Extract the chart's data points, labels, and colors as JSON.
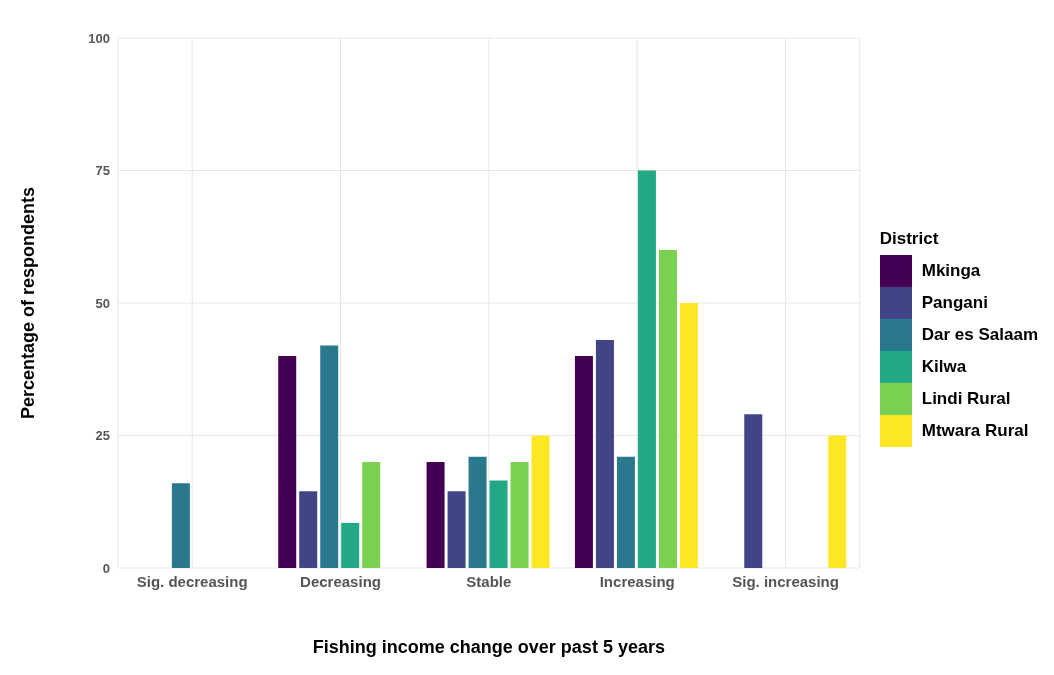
{
  "chart_data": {
    "type": "bar",
    "xlabel": "Fishing income change over past 5 years",
    "ylabel": "Percentage of respondents",
    "legend_title": "District",
    "categories": [
      "Sig. decreasing",
      "Decreasing",
      "Stable",
      "Increasing",
      "Sig. increasing"
    ],
    "series": [
      {
        "name": "Mkinga",
        "color": "#440154",
        "values": [
          0,
          40,
          20,
          40,
          0
        ]
      },
      {
        "name": "Pangani",
        "color": "#414487",
        "values": [
          0,
          14.5,
          14.5,
          43,
          29
        ]
      },
      {
        "name": "Dar es Salaam",
        "color": "#2a788e",
        "values": [
          16,
          42,
          21,
          21,
          0
        ]
      },
      {
        "name": "Kilwa",
        "color": "#22a884",
        "values": [
          0,
          8.5,
          16.5,
          75,
          0
        ]
      },
      {
        "name": "Lindi Rural",
        "color": "#7ad151",
        "values": [
          0,
          20,
          20,
          60,
          0
        ]
      },
      {
        "name": "Mtwara Rural",
        "color": "#fde725",
        "values": [
          0,
          0,
          25,
          50,
          25
        ]
      }
    ],
    "ylim": [
      0,
      100
    ],
    "yticks": [
      0,
      25,
      50,
      75,
      100
    ],
    "grid": true,
    "legend": "right"
  }
}
